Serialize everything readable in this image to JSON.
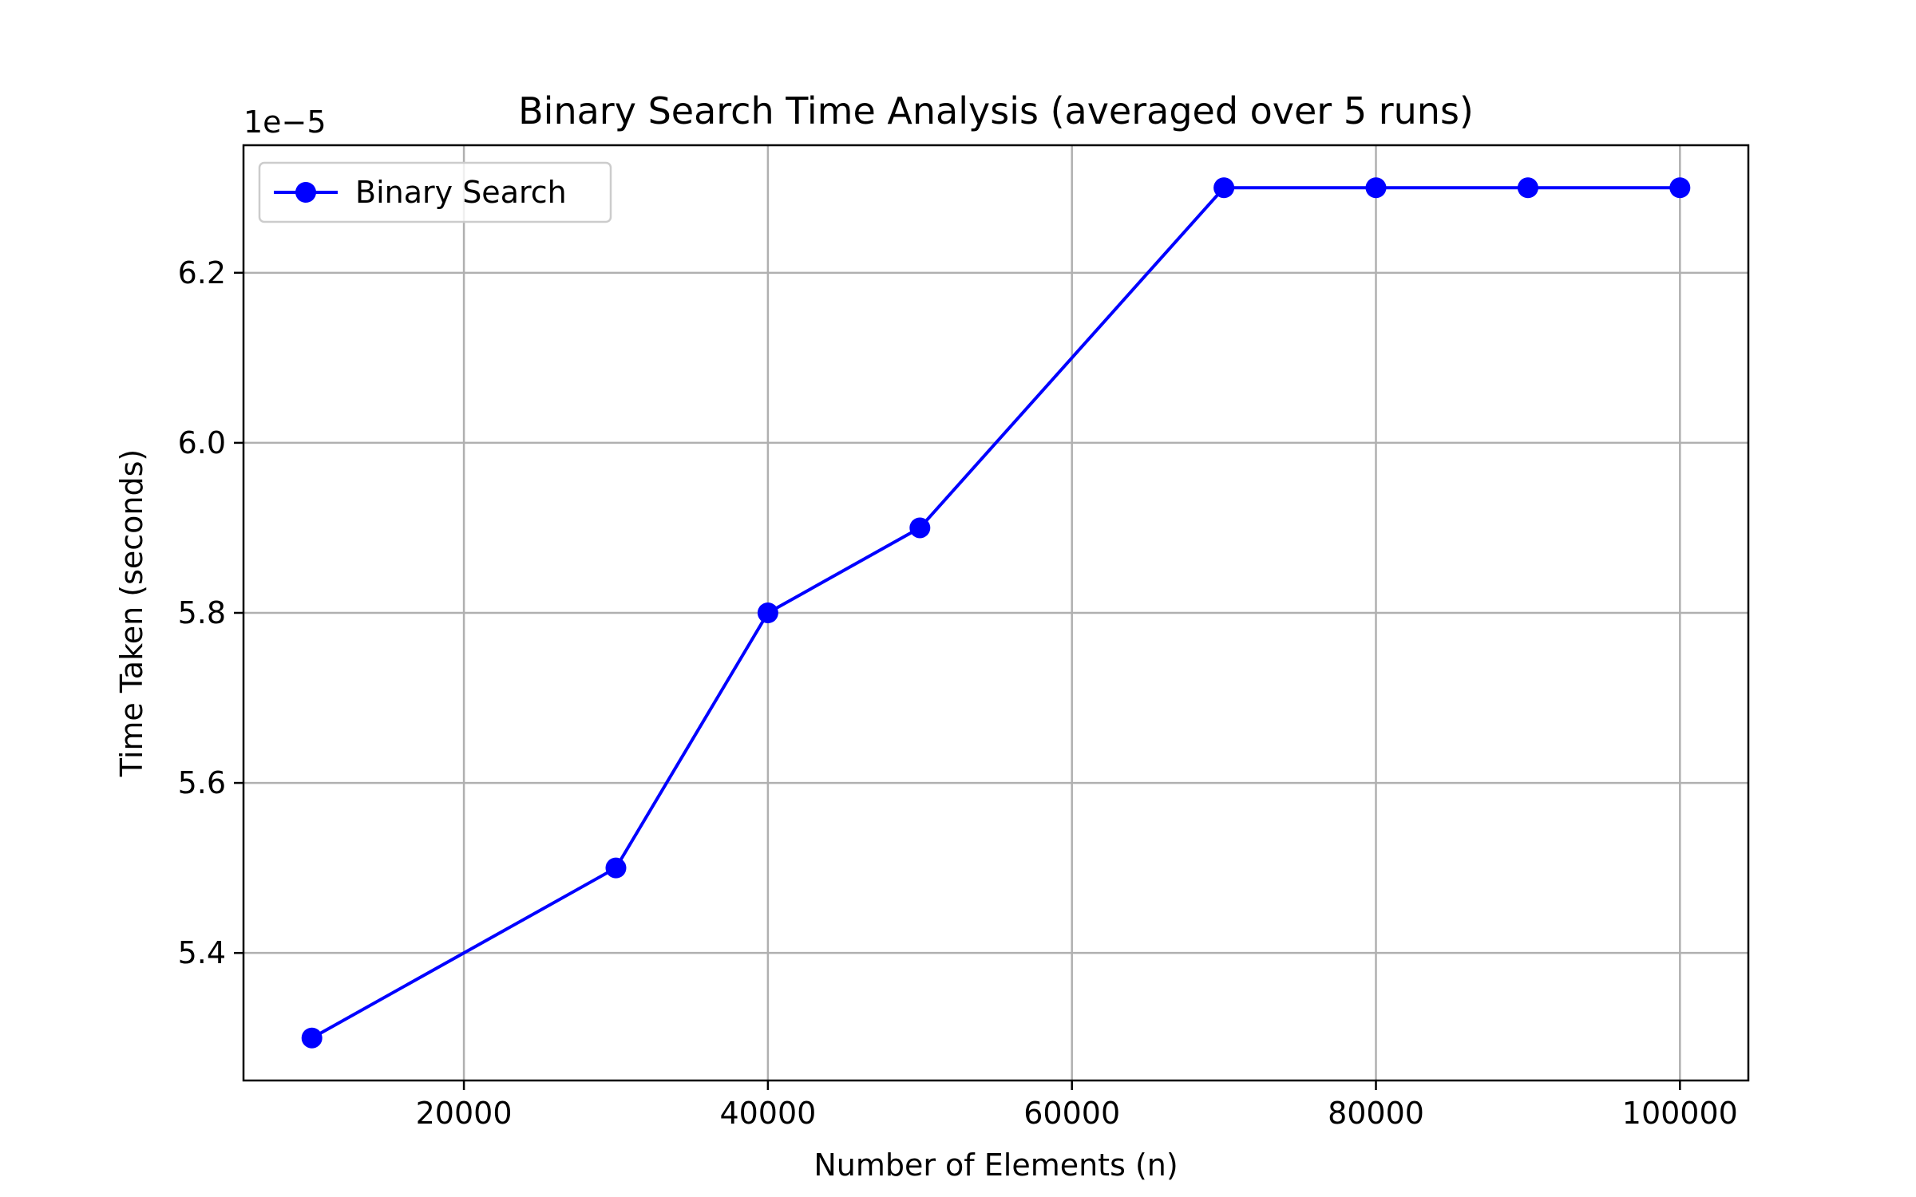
{
  "chart_data": {
    "type": "line",
    "title": "Binary Search Time Analysis (averaged over 5 runs)",
    "xlabel": "Number of Elements (n)",
    "ylabel": "Time Taken (seconds)",
    "y_offset_text": "1e−5",
    "y_scale_factor": 1e-05,
    "xlim": [
      5500,
      104500
    ],
    "ylim": [
      5.25,
      6.35
    ],
    "x_ticks": [
      20000,
      40000,
      60000,
      80000,
      100000
    ],
    "x_tick_labels": [
      "20000",
      "40000",
      "60000",
      "80000",
      "100000"
    ],
    "y_ticks": [
      5.4,
      5.6,
      5.8,
      6.0,
      6.2
    ],
    "y_tick_labels": [
      "5.4",
      "5.6",
      "5.8",
      "6.0",
      "6.2"
    ],
    "grid": true,
    "legend_position": "top-left",
    "series": [
      {
        "name": "Binary Search",
        "color": "#0000ff",
        "marker": "circle",
        "x": [
          10000,
          30000,
          40000,
          50000,
          70000,
          80000,
          90000,
          100000
        ],
        "y": [
          5.3,
          5.5,
          5.8,
          5.9,
          6.3,
          6.3,
          6.3,
          6.3
        ]
      }
    ]
  }
}
